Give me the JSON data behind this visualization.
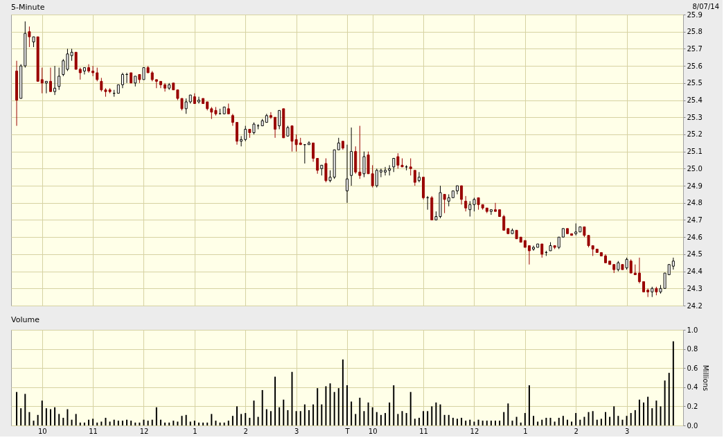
{
  "chart_data": [
    {
      "type": "candlestick",
      "title": "5-Minute",
      "annotations": [
        "8/07/14"
      ],
      "categories": [
        null,
        null,
        null,
        null,
        null,
        null,
        null,
        null,
        null,
        null,
        null,
        null,
        null,
        null,
        null,
        null,
        null,
        null,
        null,
        null,
        null,
        null,
        null,
        null,
        null,
        null,
        null,
        null,
        null,
        null,
        null,
        null,
        null,
        null,
        null,
        null,
        null,
        null,
        null,
        null,
        null,
        null,
        null,
        null,
        null,
        null,
        null,
        null,
        null,
        null,
        null,
        null,
        null,
        null,
        null,
        null,
        null,
        null,
        null,
        null,
        null,
        null,
        null,
        null,
        null,
        null,
        null,
        null,
        null,
        null,
        null,
        null,
        null,
        null,
        null,
        null,
        null,
        null,
        null,
        null,
        null,
        null,
        null,
        null,
        null,
        null,
        null,
        null,
        null,
        null,
        null,
        null,
        null,
        null,
        null,
        null,
        null,
        null,
        null,
        null,
        null,
        null,
        null,
        null,
        null,
        null,
        null,
        null,
        null,
        null,
        null,
        null,
        null,
        null,
        null,
        null,
        null,
        null,
        null,
        null,
        null,
        null,
        null,
        null,
        null,
        null,
        null,
        null,
        null,
        null,
        null,
        null,
        null,
        null,
        null,
        null,
        null,
        null,
        null,
        null,
        null,
        null,
        null,
        null,
        null,
        null,
        null,
        null,
        null,
        null,
        null,
        null,
        null,
        null,
        null,
        null
      ],
      "ohlc": [
        [
          25.57,
          25.63,
          25.25,
          25.4
        ],
        [
          25.41,
          25.61,
          25.41,
          25.6
        ],
        [
          25.6,
          25.86,
          25.59,
          25.79
        ],
        [
          25.8,
          25.83,
          25.71,
          25.77
        ],
        [
          25.74,
          25.77,
          25.71,
          25.77
        ],
        [
          25.77,
          25.77,
          25.51,
          25.51
        ],
        [
          25.52,
          25.59,
          25.44,
          25.5
        ],
        [
          25.5,
          25.51,
          25.44,
          25.51
        ],
        [
          25.51,
          25.59,
          25.45,
          25.45
        ],
        [
          25.45,
          25.6,
          25.43,
          25.47
        ],
        [
          25.48,
          25.59,
          25.46,
          25.54
        ],
        [
          25.55,
          25.64,
          25.54,
          25.63
        ],
        [
          25.58,
          25.7,
          25.57,
          25.67
        ],
        [
          25.66,
          25.7,
          25.63,
          25.68
        ],
        [
          25.68,
          25.68,
          25.58,
          25.58
        ],
        [
          25.58,
          25.59,
          25.52,
          25.56
        ],
        [
          25.57,
          25.59,
          25.55,
          25.59
        ],
        [
          25.59,
          25.61,
          25.56,
          25.57
        ],
        [
          25.57,
          25.6,
          25.54,
          25.56
        ],
        [
          25.56,
          25.59,
          25.51,
          25.52
        ],
        [
          25.51,
          25.53,
          25.45,
          25.46
        ],
        [
          25.46,
          25.47,
          25.42,
          25.45
        ],
        [
          25.46,
          25.47,
          25.44,
          25.45
        ],
        [
          25.44,
          25.46,
          25.42,
          25.44
        ],
        [
          25.44,
          25.49,
          25.44,
          25.49
        ],
        [
          25.49,
          25.56,
          25.47,
          25.55
        ],
        [
          25.55,
          25.56,
          25.5,
          25.55
        ],
        [
          25.56,
          25.56,
          25.5,
          25.5
        ],
        [
          25.5,
          25.54,
          25.48,
          25.54
        ],
        [
          25.55,
          25.55,
          25.5,
          25.52
        ],
        [
          25.52,
          25.59,
          25.52,
          25.59
        ],
        [
          25.59,
          25.6,
          25.56,
          25.56
        ],
        [
          25.56,
          25.57,
          25.51,
          25.52
        ],
        [
          25.52,
          25.52,
          25.47,
          25.51
        ],
        [
          25.51,
          25.51,
          25.47,
          25.49
        ],
        [
          25.49,
          25.5,
          25.45,
          25.47
        ],
        [
          25.47,
          25.5,
          25.46,
          25.49
        ],
        [
          25.5,
          25.5,
          25.46,
          25.46
        ],
        [
          25.46,
          25.46,
          25.4,
          25.41
        ],
        [
          25.41,
          25.41,
          25.34,
          25.35
        ],
        [
          25.35,
          25.41,
          25.32,
          25.39
        ],
        [
          25.39,
          25.43,
          25.38,
          25.43
        ],
        [
          25.42,
          25.44,
          25.38,
          25.38
        ],
        [
          25.39,
          25.42,
          25.38,
          25.4
        ],
        [
          25.41,
          25.41,
          25.38,
          25.38
        ],
        [
          25.39,
          25.39,
          25.34,
          25.35
        ],
        [
          25.35,
          25.36,
          25.29,
          25.33
        ],
        [
          25.34,
          25.36,
          25.31,
          25.32
        ],
        [
          25.32,
          25.35,
          25.32,
          25.32
        ],
        [
          25.32,
          25.36,
          25.32,
          25.36
        ],
        [
          25.35,
          25.38,
          25.32,
          25.32
        ],
        [
          25.31,
          25.32,
          25.25,
          25.27
        ],
        [
          25.27,
          25.27,
          25.14,
          25.16
        ],
        [
          25.16,
          25.19,
          25.13,
          25.17
        ],
        [
          25.17,
          25.25,
          25.16,
          25.23
        ],
        [
          25.23,
          25.23,
          25.18,
          25.21
        ],
        [
          25.21,
          25.27,
          25.2,
          25.26
        ],
        [
          25.25,
          25.26,
          25.23,
          25.25
        ],
        [
          25.25,
          25.29,
          25.25,
          25.28
        ],
        [
          25.27,
          25.32,
          25.27,
          25.31
        ],
        [
          25.31,
          25.33,
          25.29,
          25.3
        ],
        [
          25.3,
          25.3,
          25.18,
          25.23
        ],
        [
          25.25,
          25.34,
          25.23,
          25.34
        ],
        [
          25.35,
          25.35,
          25.18,
          25.18
        ],
        [
          25.19,
          25.25,
          25.19,
          25.24
        ],
        [
          25.25,
          25.25,
          25.1,
          25.16
        ],
        [
          25.17,
          25.2,
          25.1,
          25.14
        ],
        [
          25.15,
          25.18,
          25.14,
          25.14
        ],
        [
          25.14,
          25.14,
          25.03,
          25.14
        ],
        [
          25.14,
          25.16,
          25.14,
          25.15
        ],
        [
          25.15,
          25.15,
          25.04,
          25.06
        ],
        [
          25.06,
          25.06,
          24.97,
          24.99
        ],
        [
          25.0,
          25.02,
          24.96,
          25.02
        ],
        [
          25.03,
          25.06,
          24.92,
          24.93
        ],
        [
          24.93,
          24.99,
          24.92,
          24.95
        ],
        [
          24.95,
          25.11,
          24.94,
          25.11
        ],
        [
          25.11,
          25.18,
          25.11,
          25.15
        ],
        [
          25.16,
          25.16,
          25.11,
          25.12
        ],
        [
          24.87,
          25.14,
          24.8,
          24.94
        ],
        [
          24.96,
          25.24,
          24.9,
          25.1
        ],
        [
          25.1,
          25.13,
          24.97,
          24.98
        ],
        [
          24.98,
          25.25,
          24.94,
          24.96
        ],
        [
          24.97,
          25.1,
          24.95,
          25.07
        ],
        [
          25.08,
          25.1,
          24.97,
          24.97
        ],
        [
          24.97,
          25.02,
          24.89,
          24.9
        ],
        [
          24.9,
          25.0,
          24.89,
          24.99
        ],
        [
          24.98,
          25.0,
          24.95,
          24.99
        ],
        [
          24.98,
          25.01,
          24.96,
          24.99
        ],
        [
          24.99,
          25.02,
          24.96,
          25.0
        ],
        [
          25.01,
          25.06,
          24.98,
          25.06
        ],
        [
          25.07,
          25.09,
          25.0,
          25.02
        ],
        [
          25.02,
          25.06,
          25.01,
          25.01
        ],
        [
          25.01,
          25.02,
          24.99,
          25.01
        ],
        [
          25.01,
          25.06,
          24.96,
          25.0
        ],
        [
          24.99,
          24.99,
          24.9,
          24.92
        ],
        [
          24.93,
          24.98,
          24.92,
          24.95
        ],
        [
          24.95,
          24.95,
          24.82,
          24.83
        ],
        [
          24.83,
          24.84,
          24.76,
          24.83
        ],
        [
          24.83,
          24.84,
          24.7,
          24.7
        ],
        [
          24.7,
          24.75,
          24.7,
          24.72
        ],
        [
          24.72,
          24.9,
          24.71,
          24.86
        ],
        [
          24.85,
          24.85,
          24.74,
          24.82
        ],
        [
          24.81,
          24.85,
          24.78,
          24.83
        ],
        [
          24.83,
          24.87,
          24.83,
          24.87
        ],
        [
          24.87,
          24.9,
          24.85,
          24.9
        ],
        [
          24.9,
          24.9,
          24.79,
          24.82
        ],
        [
          24.81,
          24.84,
          24.75,
          24.77
        ],
        [
          24.76,
          24.81,
          24.72,
          24.79
        ],
        [
          24.79,
          24.83,
          24.75,
          24.82
        ],
        [
          24.83,
          24.83,
          24.76,
          24.79
        ],
        [
          24.79,
          24.79,
          24.76,
          24.77
        ],
        [
          24.77,
          24.77,
          24.74,
          24.75
        ],
        [
          24.75,
          24.76,
          24.73,
          24.76
        ],
        [
          24.76,
          24.8,
          24.75,
          24.75
        ],
        [
          24.76,
          24.76,
          24.72,
          24.72
        ],
        [
          24.72,
          24.73,
          24.64,
          24.64
        ],
        [
          24.65,
          24.65,
          24.62,
          24.62
        ],
        [
          24.62,
          24.65,
          24.62,
          24.64
        ],
        [
          24.64,
          24.64,
          24.59,
          24.59
        ],
        [
          24.6,
          24.6,
          24.57,
          24.57
        ],
        [
          24.58,
          24.58,
          24.54,
          24.54
        ],
        [
          24.55,
          24.55,
          24.44,
          24.52
        ],
        [
          24.53,
          24.55,
          24.52,
          24.54
        ],
        [
          24.54,
          24.56,
          24.54,
          24.56
        ],
        [
          24.56,
          24.56,
          24.48,
          24.5
        ],
        [
          24.51,
          24.52,
          24.49,
          24.51
        ],
        [
          24.52,
          24.57,
          24.52,
          24.55
        ],
        [
          24.55,
          24.55,
          24.53,
          24.54
        ],
        [
          24.54,
          24.6,
          24.53,
          24.6
        ],
        [
          24.6,
          24.65,
          24.6,
          24.65
        ],
        [
          24.65,
          24.65,
          24.62,
          24.62
        ],
        [
          24.62,
          24.62,
          24.61,
          24.61
        ],
        [
          24.62,
          24.68,
          24.61,
          24.63
        ],
        [
          24.63,
          24.66,
          24.63,
          24.66
        ],
        [
          24.66,
          24.66,
          24.6,
          24.61
        ],
        [
          24.61,
          24.61,
          24.54,
          24.55
        ],
        [
          24.55,
          24.55,
          24.49,
          24.53
        ],
        [
          24.53,
          24.53,
          24.51,
          24.51
        ],
        [
          24.51,
          24.51,
          24.49,
          24.49
        ],
        [
          24.49,
          24.5,
          24.45,
          24.45
        ],
        [
          24.46,
          24.46,
          24.44,
          24.44
        ],
        [
          24.44,
          24.44,
          24.39,
          24.41
        ],
        [
          24.41,
          24.46,
          24.4,
          24.45
        ],
        [
          24.44,
          24.44,
          24.41,
          24.41
        ],
        [
          24.42,
          24.48,
          24.41,
          24.47
        ],
        [
          24.46,
          24.47,
          24.39,
          24.39
        ],
        [
          24.39,
          24.44,
          24.38,
          24.38
        ],
        [
          24.39,
          24.48,
          24.33,
          24.34
        ],
        [
          24.34,
          24.34,
          24.28,
          24.28
        ],
        [
          24.29,
          24.3,
          24.25,
          24.28
        ],
        [
          24.28,
          24.31,
          24.25,
          24.3
        ],
        [
          24.3,
          24.31,
          24.26,
          24.28
        ],
        [
          24.28,
          24.32,
          24.27,
          24.3
        ],
        [
          24.3,
          24.39,
          24.3,
          24.39
        ],
        [
          24.38,
          24.44,
          24.38,
          24.44
        ],
        [
          24.43,
          24.48,
          24.41,
          24.46
        ]
      ],
      "colors": [
        "#990000",
        "#ffffff",
        "#ffffff",
        "#990000",
        "#ffffff",
        "#990000",
        "#990000",
        "#ffffff",
        "#990000",
        "#ffffff",
        "#ffffff",
        "#ffffff",
        "#ffffff",
        "#ffffff",
        "#990000",
        "#990000",
        "#ffffff",
        "#990000",
        "#990000",
        "#990000",
        "#990000",
        "#990000",
        "#990000",
        "#000000",
        "#ffffff",
        "#ffffff",
        "#000000",
        "#990000",
        "#ffffff",
        "#990000",
        "#ffffff",
        "#990000",
        "#990000",
        "#990000",
        "#990000",
        "#990000",
        "#ffffff",
        "#990000",
        "#990000",
        "#990000",
        "#ffffff",
        "#ffffff",
        "#990000",
        "#ffffff",
        "#990000",
        "#990000",
        "#990000",
        "#990000",
        "#000000",
        "#ffffff",
        "#990000",
        "#990000",
        "#990000",
        "#ffffff",
        "#ffffff",
        "#990000",
        "#ffffff",
        "#000000",
        "#ffffff",
        "#ffffff",
        "#990000",
        "#990000",
        "#ffffff",
        "#990000",
        "#ffffff",
        "#990000",
        "#990000",
        "#990000",
        "#000000",
        "#ffffff",
        "#990000",
        "#990000",
        "#ffffff",
        "#990000",
        "#ffffff",
        "#ffffff",
        "#ffffff",
        "#990000",
        "#ffffff",
        "#ffffff",
        "#990000",
        "#990000",
        "#ffffff",
        "#990000",
        "#990000",
        "#ffffff",
        "#ffffff",
        "#ffffff",
        "#ffffff",
        "#ffffff",
        "#990000",
        "#990000",
        "#000000",
        "#990000",
        "#990000",
        "#ffffff",
        "#990000",
        "#000000",
        "#990000",
        "#ffffff",
        "#ffffff",
        "#990000",
        "#ffffff",
        "#ffffff",
        "#ffffff",
        "#990000",
        "#990000",
        "#ffffff",
        "#ffffff",
        "#990000",
        "#990000",
        "#990000",
        "#ffffff",
        "#990000",
        "#990000",
        "#990000",
        "#990000",
        "#ffffff",
        "#990000",
        "#990000",
        "#990000",
        "#990000",
        "#ffffff",
        "#ffffff",
        "#990000",
        "#000000",
        "#ffffff",
        "#990000",
        "#ffffff",
        "#ffffff",
        "#990000",
        "#990000",
        "#ffffff",
        "#ffffff",
        "#990000",
        "#990000",
        "#990000",
        "#990000",
        "#990000",
        "#990000",
        "#990000",
        "#990000",
        "#ffffff",
        "#990000",
        "#ffffff",
        "#990000",
        "#990000",
        "#990000",
        "#990000",
        "#990000",
        "#ffffff",
        "#990000",
        "#ffffff",
        "#ffffff",
        "#ffffff",
        "#ffffff"
      ],
      "ylim": [
        24.2,
        25.9
      ],
      "yticks": [
        24.2,
        24.3,
        24.4,
        24.5,
        24.6,
        24.7,
        24.8,
        24.9,
        {
          "value": 25,
          "label": "25.0"
        },
        25.1,
        25.2,
        25.3,
        25.4,
        25.5,
        25.6,
        25.7,
        25.8,
        25.9
      ],
      "grid": true
    },
    {
      "type": "bar",
      "title": "Volume",
      "ylabel": "Millions",
      "categories": [
        null,
        null,
        null,
        null,
        null,
        null,
        "10",
        null,
        null,
        null,
        null,
        null,
        null,
        null,
        null,
        null,
        null,
        null,
        "11",
        null,
        null,
        null,
        null,
        null,
        null,
        null,
        null,
        null,
        null,
        null,
        "12",
        null,
        null,
        null,
        null,
        null,
        null,
        null,
        null,
        null,
        null,
        null,
        "1",
        null,
        null,
        null,
        null,
        null,
        null,
        null,
        null,
        null,
        null,
        null,
        "2",
        null,
        null,
        null,
        null,
        null,
        null,
        null,
        null,
        null,
        null,
        null,
        "3",
        null,
        null,
        null,
        null,
        null,
        null,
        null,
        null,
        null,
        null,
        null,
        "T",
        null,
        null,
        null,
        null,
        null,
        "10",
        null,
        null,
        null,
        null,
        null,
        null,
        null,
        null,
        null,
        null,
        null,
        "11",
        null,
        null,
        null,
        null,
        null,
        null,
        null,
        null,
        null,
        null,
        null,
        "12",
        null,
        null,
        null,
        null,
        null,
        null,
        null,
        null,
        null,
        null,
        null,
        "1",
        null,
        null,
        null,
        null,
        null,
        null,
        null,
        null,
        null,
        null,
        null,
        "2",
        null,
        null,
        null,
        null,
        null,
        null,
        null,
        null,
        null,
        null,
        null,
        "3",
        null,
        null,
        null,
        null,
        null,
        null,
        null,
        null,
        null,
        null,
        null
      ],
      "values": [
        0.35,
        0.18,
        0.33,
        0.14,
        0.05,
        0.11,
        0.26,
        0.18,
        0.17,
        0.19,
        0.12,
        0.08,
        0.17,
        0.06,
        0.12,
        0.03,
        0.03,
        0.06,
        0.07,
        0.03,
        0.04,
        0.08,
        0.04,
        0.06,
        0.05,
        0.05,
        0.06,
        0.05,
        0.03,
        0.03,
        0.06,
        0.05,
        0.06,
        0.19,
        0.06,
        0.03,
        0.03,
        0.05,
        0.04,
        0.1,
        0.11,
        0.04,
        0.05,
        0.03,
        0.03,
        0.03,
        0.12,
        0.05,
        0.03,
        0.03,
        0.05,
        0.1,
        0.2,
        0.12,
        0.13,
        0.08,
        0.26,
        0.09,
        0.37,
        0.17,
        0.15,
        0.51,
        0.19,
        0.27,
        0.16,
        0.56,
        0.15,
        0.15,
        0.22,
        0.16,
        0.22,
        0.39,
        0.22,
        0.41,
        0.44,
        0.35,
        0.39,
        0.69,
        0.42,
        0.25,
        0.12,
        0.29,
        0.15,
        0.24,
        0.19,
        0.14,
        0.11,
        0.13,
        0.24,
        0.42,
        0.12,
        0.15,
        0.13,
        0.35,
        0.07,
        0.08,
        0.15,
        0.15,
        0.2,
        0.24,
        0.22,
        0.11,
        0.11,
        0.08,
        0.07,
        0.08,
        0.05,
        0.06,
        0.04,
        0.06,
        0.05,
        0.05,
        0.05,
        0.05,
        0.05,
        0.14,
        0.23,
        0.05,
        0.09,
        0.03,
        0.13,
        0.42,
        0.1,
        0.04,
        0.06,
        0.08,
        0.08,
        0.04,
        0.08,
        0.1,
        0.06,
        0.04,
        0.13,
        0.06,
        0.09,
        0.14,
        0.15,
        0.06,
        0.07,
        0.14,
        0.09,
        0.2,
        0.1,
        0.06,
        0.1,
        0.13,
        0.16,
        0.27,
        0.24,
        0.3,
        0.18,
        0.26,
        0.2,
        0.47,
        0.55,
        0.88
      ],
      "color": "#000000",
      "ylim": [
        0,
        1
      ],
      "yticks": [
        {
          "value": 0,
          "label": "0.0"
        },
        0.2,
        0.4,
        0.6,
        0.8,
        {
          "value": 1,
          "label": "1.0"
        }
      ],
      "grid": true
    }
  ]
}
